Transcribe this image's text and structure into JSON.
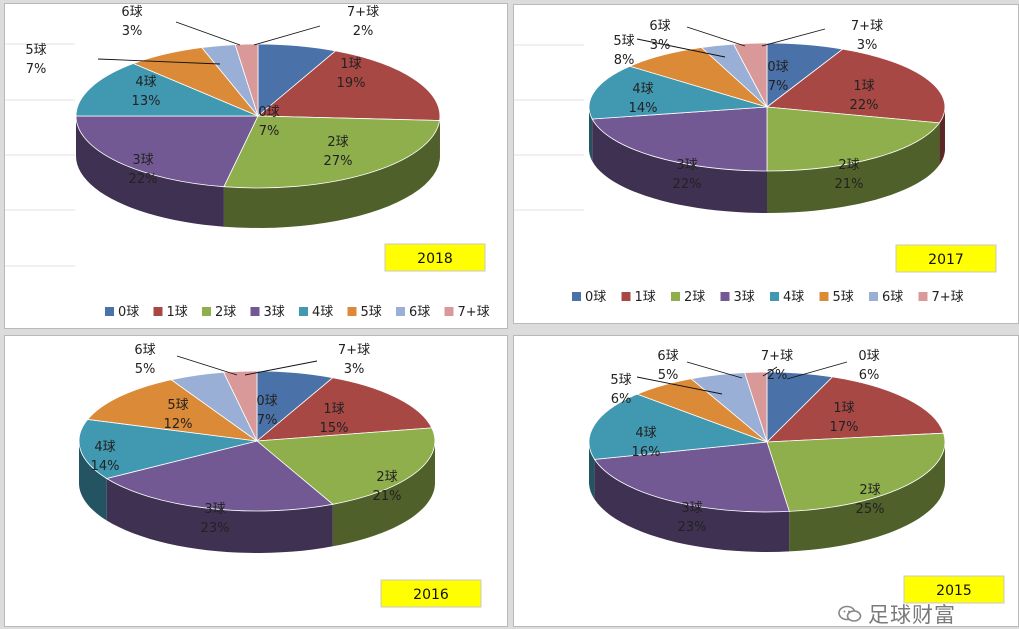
{
  "chart_data": [
    {
      "type": "pie",
      "title": "2018",
      "categories": [
        "0球",
        "1球",
        "2球",
        "3球",
        "4球",
        "5球",
        "6球",
        "7+球"
      ],
      "values": [
        7,
        19,
        27,
        22,
        13,
        7,
        3,
        2
      ],
      "data_labels": [
        "7%",
        "19%",
        "27%",
        "22%",
        "13%",
        "7%",
        "3%",
        "2%"
      ],
      "legend": {
        "position": "bottom",
        "entries": [
          "0球",
          "1球",
          "2球",
          "3球",
          "4球",
          "5球",
          "6球",
          "7+球"
        ]
      }
    },
    {
      "type": "pie",
      "title": "2017",
      "categories": [
        "0球",
        "1球",
        "2球",
        "3球",
        "4球",
        "5球",
        "6球",
        "7+球"
      ],
      "values": [
        7,
        22,
        21,
        22,
        14,
        8,
        3,
        3
      ],
      "data_labels": [
        "7%",
        "22%",
        "21%",
        "22%",
        "14%",
        "8%",
        "3%",
        "3%"
      ],
      "legend": {
        "position": "bottom",
        "entries": [
          "0球",
          "1球",
          "2球",
          "3球",
          "4球",
          "5球",
          "6球",
          "7+球"
        ]
      }
    },
    {
      "type": "pie",
      "title": "2016",
      "categories": [
        "0球",
        "1球",
        "2球",
        "3球",
        "4球",
        "5球",
        "6球",
        "7+球"
      ],
      "values": [
        7,
        15,
        21,
        23,
        14,
        12,
        5,
        3
      ],
      "data_labels": [
        "7%",
        "15%",
        "21%",
        "23%",
        "14%",
        "12%",
        "5%",
        "3%"
      ],
      "legend": {
        "position": "bottom",
        "entries": []
      }
    },
    {
      "type": "pie",
      "title": "2015",
      "categories": [
        "0球",
        "1球",
        "2球",
        "3球",
        "4球",
        "5球",
        "6球",
        "7+球"
      ],
      "values": [
        6,
        17,
        25,
        23,
        16,
        6,
        5,
        2
      ],
      "data_labels": [
        "6%",
        "17%",
        "25%",
        "23%",
        "16%",
        "6%",
        "5%",
        "2%"
      ],
      "legend": {
        "position": "bottom",
        "entries": []
      }
    }
  ],
  "colors": [
    "#4a71a8",
    "#a84845",
    "#8fae4c",
    "#735993",
    "#4199b1",
    "#db8a38",
    "#99afd6",
    "#d99998"
  ],
  "year_box_color": "#ffff00",
  "watermark": {
    "text": "足球财富",
    "icon": "wechat-icon"
  }
}
